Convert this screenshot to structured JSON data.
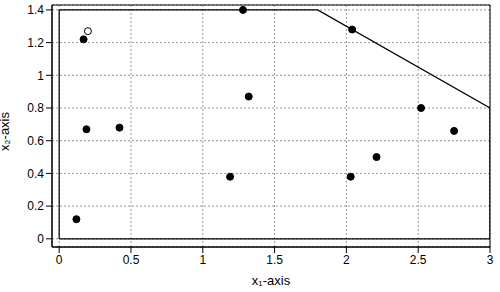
{
  "chart_data": {
    "type": "scatter",
    "xlabel": "x₁-axis",
    "ylabel": "x₂-axis",
    "xlim": [
      -0.05,
      3
    ],
    "ylim": [
      -0.05,
      1.43
    ],
    "xticks": [
      0,
      0.5,
      1,
      1.5,
      2,
      2.5,
      3
    ],
    "yticks": [
      0,
      0.2,
      0.4,
      0.6,
      0.8,
      1,
      1.2,
      1.4
    ],
    "grid": true,
    "series": [
      {
        "type": "line",
        "color": "#000000",
        "line_style": "solid",
        "x": [
          0,
          0,
          1.8,
          3,
          3,
          0
        ],
        "y": [
          0,
          1.4,
          1.4,
          0.8,
          0,
          0
        ]
      },
      {
        "type": "scatter",
        "color": "#000000",
        "marker": "filled",
        "x": [
          0.12,
          0.17,
          0.19,
          0.42,
          1.19,
          1.28,
          1.32,
          2.03,
          2.04,
          2.21,
          2.52,
          2.75
        ],
        "y": [
          0.12,
          1.22,
          0.67,
          0.68,
          0.38,
          1.4,
          0.87,
          0.38,
          1.28,
          0.5,
          0.8,
          0.66
        ]
      },
      {
        "type": "scatter",
        "color": "#000000",
        "marker": "open",
        "x": [
          0.2
        ],
        "y": [
          1.27
        ]
      }
    ]
  }
}
